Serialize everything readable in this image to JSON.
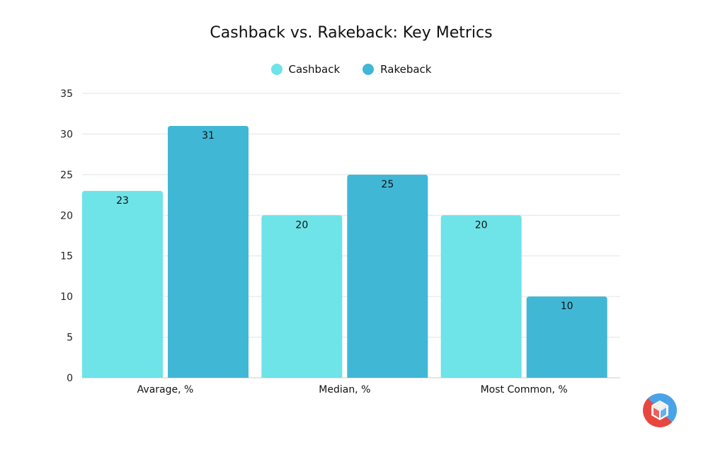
{
  "chart_data": {
    "type": "bar",
    "title": "Cashback vs. Rakeback: Key Metrics",
    "categories": [
      "Avarage, %",
      "Median, %",
      "Most Common, %"
    ],
    "series": [
      {
        "name": "Cashback",
        "values": [
          23,
          20,
          20
        ],
        "color": "#6ee3e8"
      },
      {
        "name": "Rakeback",
        "values": [
          31,
          25,
          10
        ],
        "color": "#41b7d6"
      }
    ],
    "ylim": [
      0,
      35
    ],
    "yticks": [
      0,
      5,
      10,
      15,
      20,
      25,
      30,
      35
    ],
    "grid": true,
    "legend_position": "top-center",
    "xlabel": "",
    "ylabel": ""
  },
  "logo": {
    "icon": "cube-logo-icon",
    "colors": [
      "#e8473f",
      "#4aa3e8"
    ]
  }
}
